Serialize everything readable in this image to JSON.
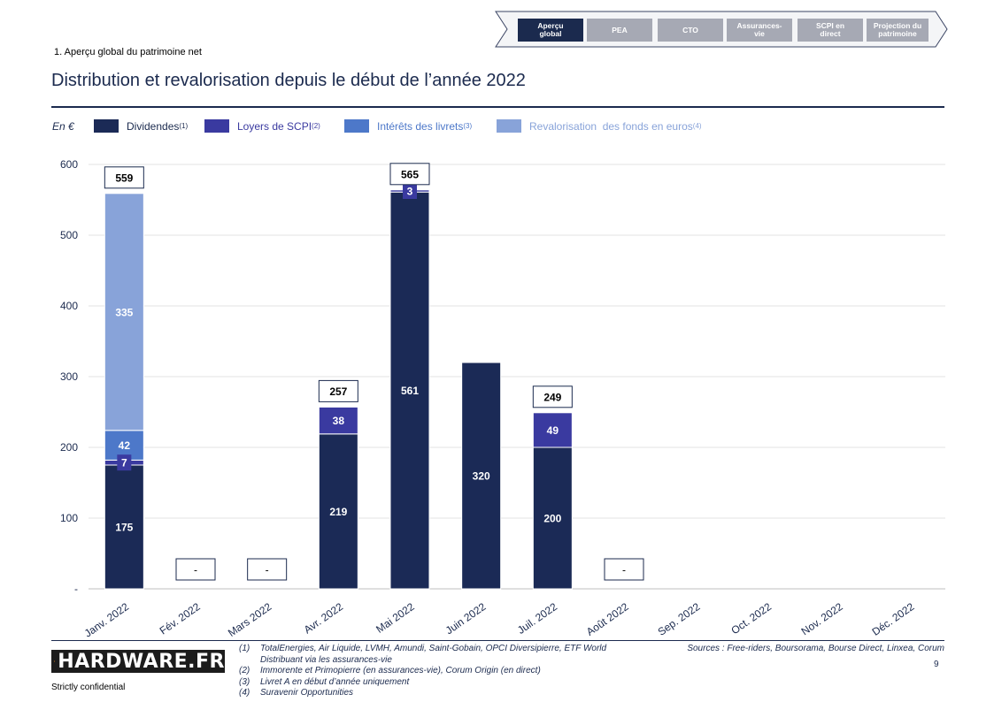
{
  "nav": {
    "tabs": [
      {
        "label": "Aperçu\nglobal",
        "active": true
      },
      {
        "label": "PEA",
        "active": false
      },
      {
        "label": "CTO",
        "active": false
      },
      {
        "label": "Assurances-\nvie",
        "active": false
      },
      {
        "label": "SCPI en\ndirect",
        "active": false
      },
      {
        "label": "Projection du\npatrimoine",
        "active": false
      }
    ]
  },
  "header": {
    "section_label": "1. Aperçu global du patrimoine net",
    "title": "Distribution et revalorisation depuis le début de l’année 2022"
  },
  "legend": {
    "unit": "En €",
    "items": [
      {
        "label": "Dividendes",
        "note": "(1)",
        "color": "#1b2a56"
      },
      {
        "label": "Loyers de SCPI",
        "note": "(2)",
        "color": "#3a3aa0"
      },
      {
        "label": "Intérêts des livrets",
        "note": "(3)",
        "color": "#4d78c9"
      },
      {
        "label": "Revalorisation  des fonds en euros",
        "note": "(4)",
        "color": "#88a3d9"
      }
    ]
  },
  "chart_data": {
    "type": "bar",
    "stacked": true,
    "categories": [
      "Janv. 2022",
      "Fév. 2022",
      "Mars 2022",
      "Avr. 2022",
      "Mai 2022",
      "Juin 2022",
      "Juil. 2022",
      "Août 2022",
      "Sep. 2022",
      "Oct. 2022",
      "Nov. 2022",
      "Déc. 2022"
    ],
    "series": [
      {
        "name": "Dividendes",
        "color": "#1b2a56",
        "values": [
          175,
          0,
          0,
          219,
          561,
          320,
          200,
          0,
          0,
          0,
          0,
          0
        ]
      },
      {
        "name": "Loyers de SCPI",
        "color": "#3a3aa0",
        "values": [
          7,
          0,
          0,
          38,
          3,
          0,
          49,
          0,
          0,
          0,
          0,
          0
        ]
      },
      {
        "name": "Intérêts des livrets",
        "color": "#4d78c9",
        "values": [
          42,
          0,
          0,
          0,
          0,
          0,
          0,
          0,
          0,
          0,
          0,
          0
        ]
      },
      {
        "name": "Revalorisation des fonds en euros",
        "color": "#88a3d9",
        "values": [
          335,
          0,
          0,
          0,
          0,
          0,
          0,
          0,
          0,
          0,
          0,
          0
        ]
      }
    ],
    "totals": [
      "559",
      "-",
      "-",
      "257",
      "565",
      "",
      "249",
      "-",
      "",
      "",
      "",
      ""
    ],
    "ylim": [
      0,
      600
    ],
    "yticks": [
      0,
      100,
      200,
      300,
      400,
      500,
      600
    ],
    "ytick_labels": [
      "-",
      "100",
      "200",
      "300",
      "400",
      "500",
      "600"
    ],
    "grid": true,
    "xlabel": "",
    "ylabel": ""
  },
  "footer": {
    "logo": "HARDWARE.FR",
    "confidential": "Strictly confidential",
    "footnotes": [
      {
        "num": "(1)",
        "text": "TotalEnergies, Air Liquide, LVMH, Amundi, Saint-Gobain, OPCI Diversipierre, ETF World Distribuant via les assurances-vie"
      },
      {
        "num": "(2)",
        "text": "Immorente et Primopierre (en assurances-vie), Corum Origin (en direct)"
      },
      {
        "num": "(3)",
        "text": "Livret A en début d’année uniquement"
      },
      {
        "num": "(4)",
        "text": "Suravenir Opportunities"
      }
    ],
    "sources": "Sources : Free-riders, Boursorama, Bourse Direct, Linxea, Corum",
    "page_number": "9"
  }
}
